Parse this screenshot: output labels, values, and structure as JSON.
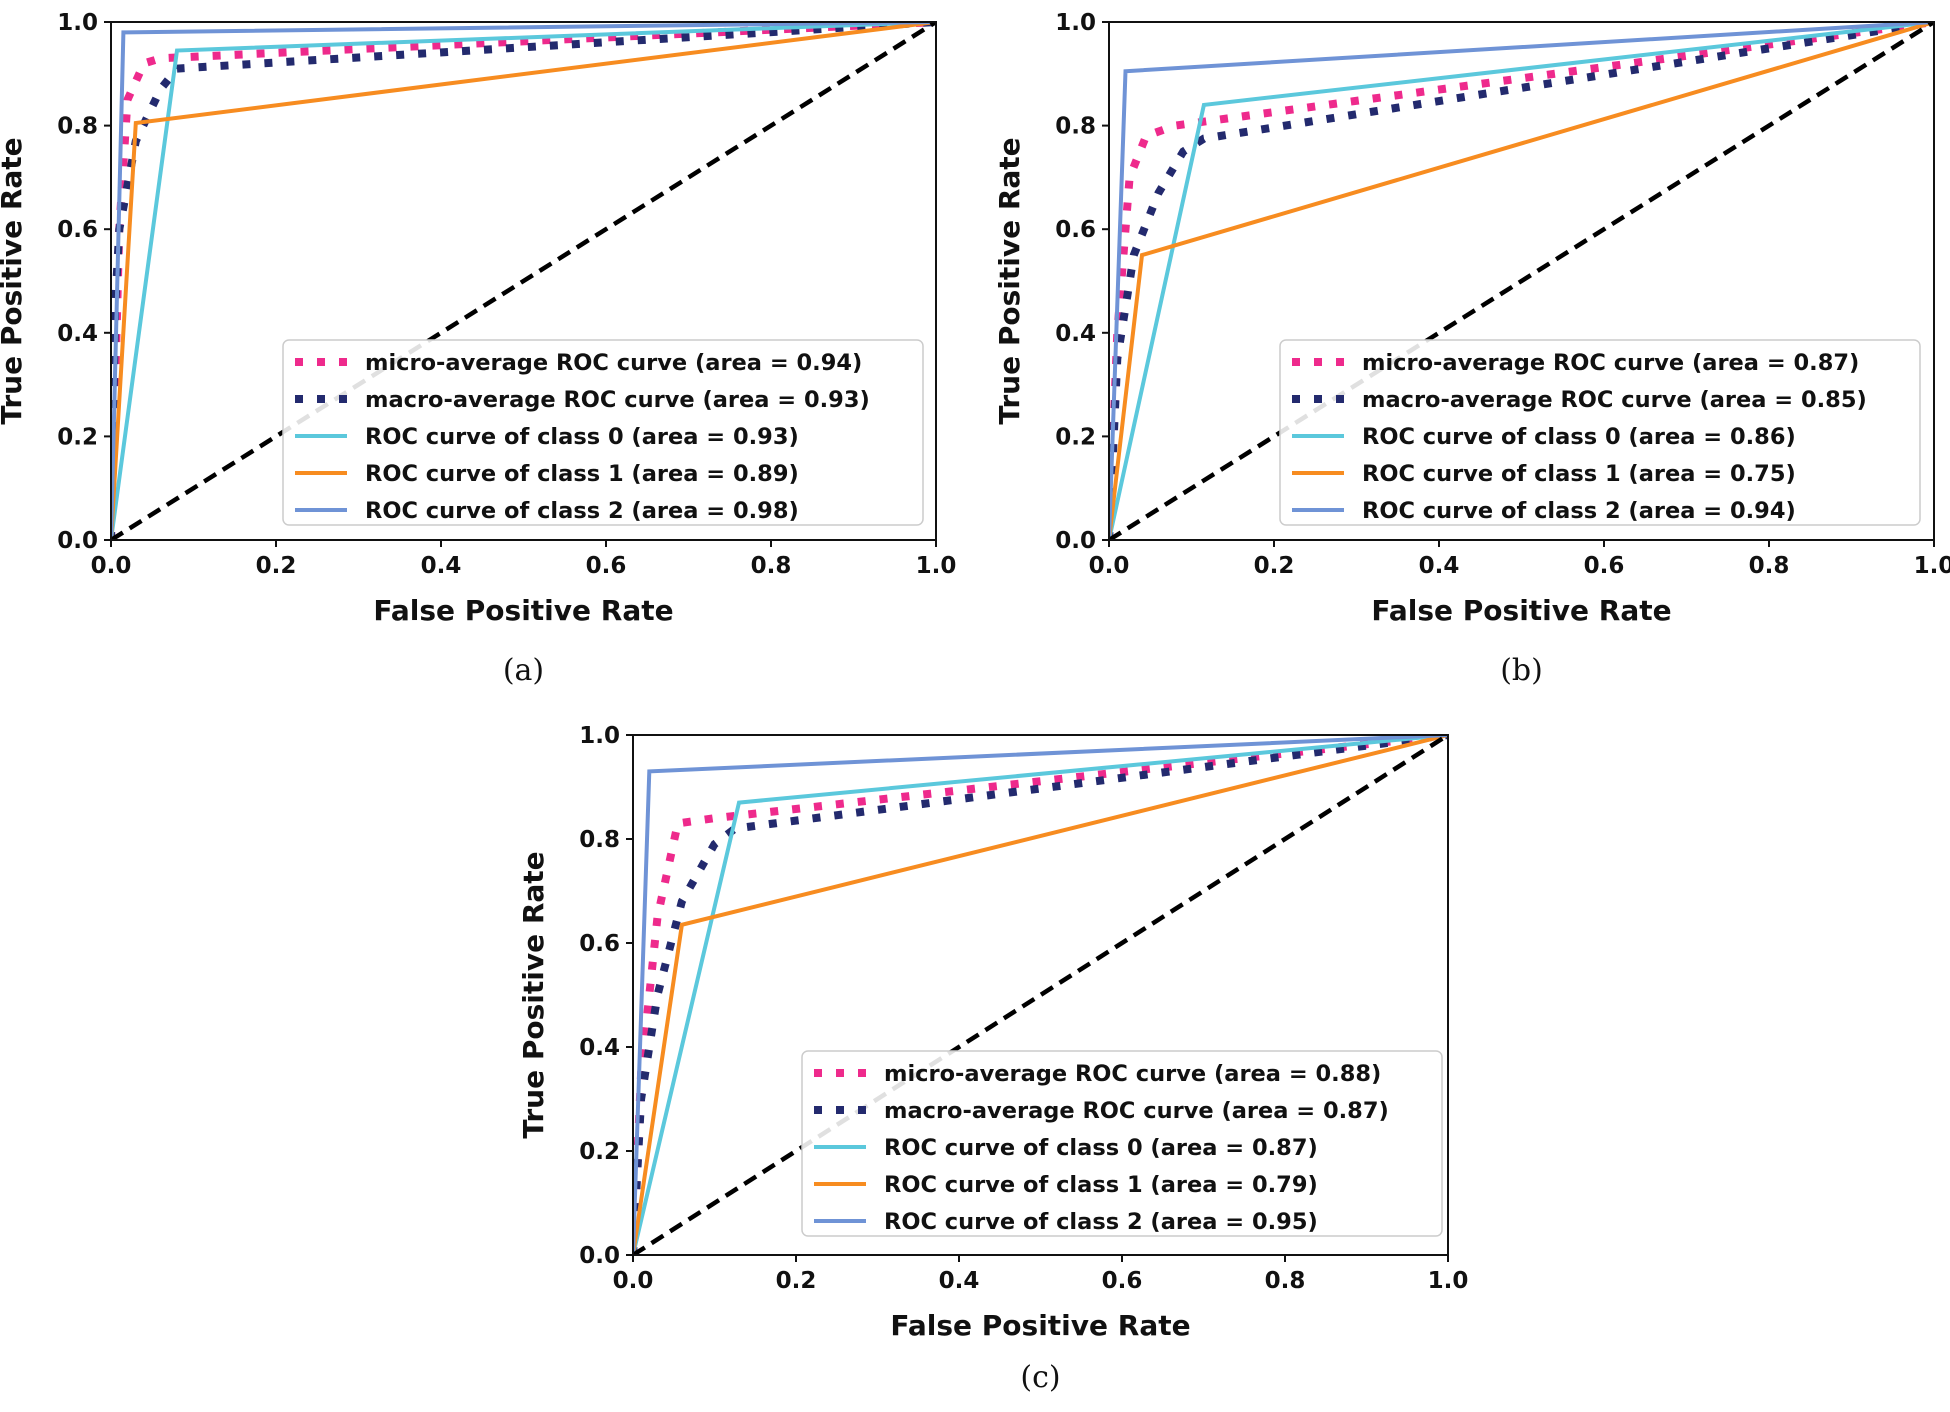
{
  "colors": {
    "micro": "#ee2a8c",
    "macro": "#232a6e",
    "class0": "#5bc8dc",
    "class1": "#f78c20",
    "class2": "#6f93d6",
    "chance": "#000000"
  },
  "chart_data": [
    {
      "type": "line",
      "caption": "(a)",
      "xlabel": "False Positive Rate",
      "ylabel": "True Positive Rate",
      "xlim": [
        0,
        1
      ],
      "ylim": [
        0,
        1
      ],
      "xticks": [
        "0.0",
        "0.2",
        "0.4",
        "0.6",
        "0.8",
        "1.0"
      ],
      "yticks": [
        "0.0",
        "0.2",
        "0.4",
        "0.6",
        "0.8",
        "1.0"
      ],
      "legend_position": "lower right",
      "series": [
        {
          "name": "micro-average ROC curve (area = 0.94)",
          "style": "dotted",
          "color_key": "micro",
          "x": [
            0,
            0.01,
            0.02,
            0.04,
            0.06,
            1.0
          ],
          "y": [
            0,
            0.6,
            0.85,
            0.92,
            0.93,
            1.0
          ]
        },
        {
          "name": "macro-average ROC curve (area = 0.93)",
          "style": "dotted",
          "color_key": "macro",
          "x": [
            0,
            0.005,
            0.01,
            0.03,
            0.06,
            0.08,
            1.0
          ],
          "y": [
            0,
            0.45,
            0.6,
            0.77,
            0.87,
            0.91,
            1.0
          ]
        },
        {
          "name": "ROC curve of class 0 (area = 0.93)",
          "style": "solid",
          "color_key": "class0",
          "x": [
            0,
            0.08,
            1.0
          ],
          "y": [
            0,
            0.945,
            1.0
          ]
        },
        {
          "name": "ROC curve of class 1 (area = 0.89)",
          "style": "solid",
          "color_key": "class1",
          "x": [
            0,
            0.03,
            1.0
          ],
          "y": [
            0,
            0.805,
            1.0
          ]
        },
        {
          "name": "ROC curve of class 2 (area = 0.98)",
          "style": "solid",
          "color_key": "class2",
          "x": [
            0,
            0.015,
            1.0
          ],
          "y": [
            0,
            0.98,
            1.0
          ]
        },
        {
          "style": "dashed",
          "color_key": "chance",
          "x": [
            0,
            1
          ],
          "y": [
            0,
            1
          ]
        }
      ]
    },
    {
      "type": "line",
      "caption": "(b)",
      "xlabel": "False Positive Rate",
      "ylabel": "True Positive Rate",
      "xlim": [
        0,
        1
      ],
      "ylim": [
        0,
        1
      ],
      "xticks": [
        "0.0",
        "0.2",
        "0.4",
        "0.6",
        "0.8",
        "1.0"
      ],
      "yticks": [
        "0.0",
        "0.2",
        "0.4",
        "0.6",
        "0.8",
        "1.0"
      ],
      "legend_position": "lower right",
      "series": [
        {
          "name": "micro-average ROC curve (area = 0.87)",
          "style": "dotted",
          "color_key": "micro",
          "x": [
            0,
            0.01,
            0.025,
            0.045,
            0.08,
            1.0
          ],
          "y": [
            0,
            0.4,
            0.7,
            0.78,
            0.8,
            1.0
          ]
        },
        {
          "name": "macro-average ROC curve (area = 0.85)",
          "style": "dotted",
          "color_key": "macro",
          "x": [
            0,
            0.01,
            0.03,
            0.06,
            0.09,
            0.115,
            1.0
          ],
          "y": [
            0,
            0.35,
            0.55,
            0.67,
            0.75,
            0.775,
            1.0
          ]
        },
        {
          "name": "ROC curve of class 0 (area = 0.86)",
          "style": "solid",
          "color_key": "class0",
          "x": [
            0,
            0.115,
            1.0
          ],
          "y": [
            0,
            0.84,
            1.0
          ]
        },
        {
          "name": "ROC curve of class 1 (area = 0.75)",
          "style": "solid",
          "color_key": "class1",
          "x": [
            0,
            0.04,
            1.0
          ],
          "y": [
            0,
            0.55,
            1.0
          ]
        },
        {
          "name": "ROC curve of class 2 (area = 0.94)",
          "style": "solid",
          "color_key": "class2",
          "x": [
            0,
            0.02,
            1.0
          ],
          "y": [
            0,
            0.905,
            1.0
          ]
        },
        {
          "style": "dashed",
          "color_key": "chance",
          "x": [
            0,
            1
          ],
          "y": [
            0,
            1
          ]
        }
      ]
    },
    {
      "type": "line",
      "caption": "(c)",
      "xlabel": "False Positive Rate",
      "ylabel": "True Positive Rate",
      "xlim": [
        0,
        1
      ],
      "ylim": [
        0,
        1
      ],
      "xticks": [
        "0.0",
        "0.2",
        "0.4",
        "0.6",
        "0.8",
        "1.0"
      ],
      "yticks": [
        "0.0",
        "0.2",
        "0.4",
        "0.6",
        "0.8",
        "1.0"
      ],
      "legend_position": "lower right",
      "series": [
        {
          "name": "micro-average ROC curve (area = 0.88)",
          "style": "dotted",
          "color_key": "micro",
          "x": [
            0,
            0.01,
            0.03,
            0.055,
            0.1,
            1.0
          ],
          "y": [
            0,
            0.35,
            0.65,
            0.83,
            0.84,
            1.0
          ]
        },
        {
          "name": "macro-average ROC curve (area = 0.87)",
          "style": "dotted",
          "color_key": "macro",
          "x": [
            0,
            0.01,
            0.03,
            0.06,
            0.1,
            0.125,
            1.0
          ],
          "y": [
            0,
            0.3,
            0.5,
            0.68,
            0.79,
            0.82,
            1.0
          ]
        },
        {
          "name": "ROC curve of class 0 (area = 0.87)",
          "style": "solid",
          "color_key": "class0",
          "x": [
            0,
            0.13,
            1.0
          ],
          "y": [
            0,
            0.87,
            1.0
          ]
        },
        {
          "name": "ROC curve of class 1 (area = 0.79)",
          "style": "solid",
          "color_key": "class1",
          "x": [
            0,
            0.06,
            1.0
          ],
          "y": [
            0,
            0.635,
            1.0
          ]
        },
        {
          "name": "ROC curve of class 2 (area = 0.95)",
          "style": "solid",
          "color_key": "class2",
          "x": [
            0,
            0.02,
            1.0
          ],
          "y": [
            0,
            0.93,
            1.0
          ]
        },
        {
          "style": "dashed",
          "color_key": "chance",
          "x": [
            0,
            1
          ],
          "y": [
            0,
            1
          ]
        }
      ]
    }
  ]
}
